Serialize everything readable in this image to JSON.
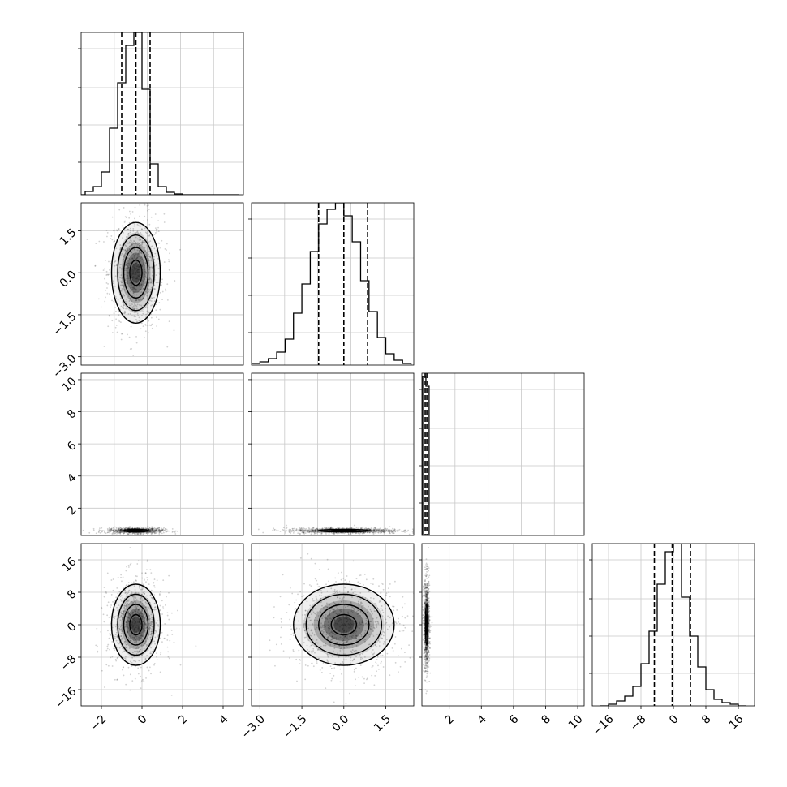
{
  "figure": {
    "type": "corner_plot",
    "background": "#ffffff",
    "grid": true
  },
  "chart_data": [
    {
      "type": "histogram",
      "row": 0,
      "col": 0,
      "param_x": 0,
      "xlim": [
        -3,
        5
      ],
      "ylim": [
        0,
        1.0
      ],
      "bin_edges": [
        -3.2,
        -2.8,
        -2.4,
        -2.0,
        -1.6,
        -1.2,
        -0.8,
        -0.4,
        0.0,
        0.4,
        0.8,
        1.2,
        1.6,
        2.0,
        2.4,
        2.8,
        3.2,
        3.6,
        4.0,
        4.4,
        4.8
      ],
      "counts": [
        0.0,
        0.02,
        0.05,
        0.14,
        0.41,
        0.69,
        0.92,
        1.0,
        0.65,
        0.19,
        0.05,
        0.015,
        0.005,
        0.0,
        0.0,
        0.0,
        0.0,
        0.0,
        0.0,
        0.0
      ],
      "quantiles": [
        -1.0,
        -0.3,
        0.4
      ],
      "xticks": [],
      "xticklabels": [],
      "yticks": [
        0.2,
        0.43,
        0.66,
        0.9
      ],
      "yticklabels": []
    },
    {
      "type": "scatter_density",
      "row": 1,
      "col": 0,
      "param_x": 0,
      "param_y": 1,
      "xlim": [
        -3,
        5
      ],
      "ylim": [
        -3.3,
        2.5
      ],
      "center": [
        -0.3,
        0.0
      ],
      "sigma": [
        0.6,
        0.9
      ],
      "contour_levels_sigma": [
        0.5,
        1.0,
        1.5,
        2.0
      ],
      "xticks": [],
      "xticklabels": [],
      "yticks": [
        -3.0,
        -1.5,
        0.0,
        1.5
      ],
      "yticklabels": [
        "−3.0",
        "−1.5",
        "0.0",
        "1.5"
      ]
    },
    {
      "type": "histogram",
      "row": 1,
      "col": 1,
      "param_x": 1,
      "xlim": [
        -3.3,
        2.5
      ],
      "ylim": [
        0,
        1.0
      ],
      "bin_edges": [
        -3.3,
        -3.0,
        -2.7,
        -2.4,
        -2.1,
        -1.8,
        -1.5,
        -1.2,
        -0.9,
        -0.6,
        -0.3,
        0.0,
        0.3,
        0.6,
        0.9,
        1.2,
        1.5,
        1.8,
        2.1,
        2.4
      ],
      "counts": [
        0.01,
        0.02,
        0.04,
        0.08,
        0.16,
        0.32,
        0.5,
        0.7,
        0.87,
        0.96,
        1.0,
        0.92,
        0.76,
        0.52,
        0.33,
        0.17,
        0.07,
        0.03,
        0.01
      ],
      "quantiles": [
        -0.9,
        0.0,
        0.85
      ],
      "xticks": [],
      "xticklabels": [],
      "yticks": [
        0.2,
        0.43,
        0.66,
        0.9
      ],
      "yticklabels": []
    },
    {
      "type": "scatter_density",
      "row": 2,
      "col": 0,
      "param_x": 0,
      "param_y": 2,
      "xlim": [
        -3,
        5
      ],
      "ylim": [
        0.3,
        10.4
      ],
      "center": [
        -0.3,
        0.6
      ],
      "sigma": [
        0.6,
        0.08
      ],
      "contour_levels_sigma": [
        0.5,
        1.0
      ],
      "xticks": [],
      "xticklabels": [],
      "yticks": [
        2,
        4,
        6,
        8,
        10
      ],
      "yticklabels": [
        "2",
        "4",
        "6",
        "8",
        "10"
      ]
    },
    {
      "type": "scatter_density",
      "row": 2,
      "col": 1,
      "param_x": 1,
      "param_y": 2,
      "xlim": [
        -3.3,
        2.5
      ],
      "ylim": [
        0.3,
        10.4
      ],
      "center": [
        0.0,
        0.6
      ],
      "sigma": [
        0.9,
        0.08
      ],
      "contour_levels_sigma": [
        0.5,
        1.0
      ],
      "xticks": [],
      "xticklabels": [],
      "yticks": [
        2,
        4,
        6,
        8,
        10
      ],
      "yticklabels": []
    },
    {
      "type": "histogram",
      "row": 2,
      "col": 2,
      "param_x": 2,
      "xlim": [
        0.3,
        10.4
      ],
      "ylim": [
        0,
        1.0
      ],
      "bin_edges": [
        0.35,
        0.55,
        0.75
      ],
      "counts": [
        0.98,
        0.92
      ],
      "quantiles": [
        0.45,
        0.55,
        0.65
      ],
      "xticks": [],
      "xticklabels": [],
      "yticks": [
        0.2,
        0.43,
        0.66,
        0.9
      ],
      "yticklabels": []
    },
    {
      "type": "scatter_density",
      "row": 3,
      "col": 0,
      "param_x": 0,
      "param_y": 3,
      "xlim": [
        -3,
        5
      ],
      "ylim": [
        -20,
        20
      ],
      "center": [
        -0.3,
        0.0
      ],
      "sigma": [
        0.6,
        5.0
      ],
      "contour_levels_sigma": [
        0.5,
        1.0,
        1.5,
        2.0
      ],
      "xticks": [
        -2,
        0,
        2,
        4
      ],
      "xticklabels": [
        "−2",
        "0",
        "2",
        "4"
      ],
      "yticks": [
        -16,
        -8,
        0,
        8,
        16
      ],
      "yticklabels": [
        "−16",
        "−8",
        "0",
        "8",
        "16"
      ]
    },
    {
      "type": "scatter_density",
      "row": 3,
      "col": 1,
      "param_x": 1,
      "param_y": 3,
      "xlim": [
        -3.3,
        2.5
      ],
      "ylim": [
        -20,
        20
      ],
      "center": [
        0.0,
        0.0
      ],
      "sigma": [
        0.9,
        5.0
      ],
      "contour_levels_sigma": [
        0.5,
        1.0,
        1.5,
        2.0
      ],
      "xticks": [
        -3.0,
        -1.5,
        0.0,
        1.5
      ],
      "xticklabels": [
        "−3.0",
        "−1.5",
        "0.0",
        "1.5"
      ],
      "yticks": [
        -16,
        -8,
        0,
        8,
        16
      ],
      "yticklabels": []
    },
    {
      "type": "scatter_density",
      "row": 3,
      "col": 2,
      "param_x": 2,
      "param_y": 3,
      "xlim": [
        0.3,
        10.4
      ],
      "ylim": [
        -20,
        20
      ],
      "center": [
        0.6,
        0.0
      ],
      "sigma": [
        0.08,
        5.0
      ],
      "contour_levels_sigma": [
        0.5,
        1.0
      ],
      "xticks": [
        2,
        4,
        6,
        8,
        10
      ],
      "xticklabels": [
        "2",
        "4",
        "6",
        "8",
        "10"
      ],
      "yticks": [
        -16,
        -8,
        0,
        8,
        16
      ],
      "yticklabels": []
    },
    {
      "type": "histogram",
      "row": 3,
      "col": 3,
      "param_x": 3,
      "xlim": [
        -20,
        20
      ],
      "ylim": [
        0,
        1.0
      ],
      "bin_edges": [
        -18,
        -16,
        -14,
        -12,
        -10,
        -8,
        -6,
        -4,
        -2,
        0,
        2,
        4,
        6,
        8,
        10,
        12,
        14,
        16,
        18
      ],
      "counts": [
        0.0,
        0.01,
        0.03,
        0.06,
        0.12,
        0.26,
        0.46,
        0.75,
        0.95,
        1.0,
        0.67,
        0.43,
        0.24,
        0.1,
        0.04,
        0.02,
        0.01,
        0.0
      ],
      "quantiles": [
        -4.7,
        -0.3,
        4.2
      ],
      "xticks": [
        -16,
        -8,
        0,
        8,
        16
      ],
      "xticklabels": [
        "−16",
        "−8",
        "0",
        "8",
        "16"
      ],
      "yticks": [
        0.2,
        0.43,
        0.66,
        0.9
      ],
      "yticklabels": []
    }
  ]
}
